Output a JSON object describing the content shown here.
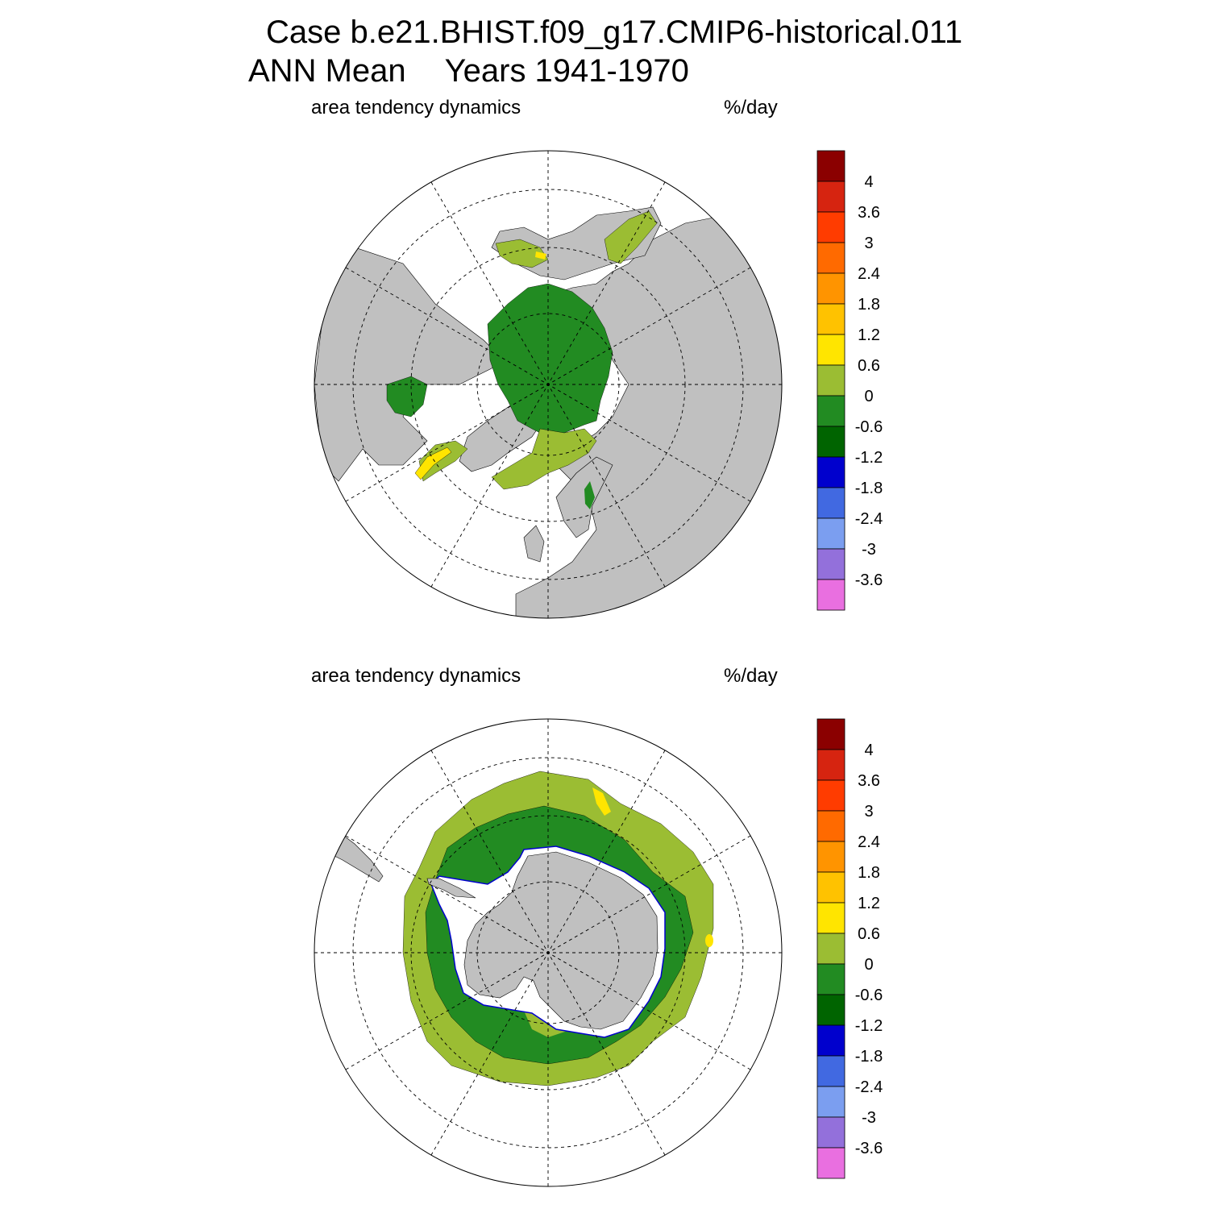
{
  "header": {
    "case_title": "Case b.e21.BHIST.f09_g17.CMIP6-historical.011",
    "period_label": "ANN Mean",
    "years_label": "Years 1941-1970"
  },
  "panels": [
    {
      "variable": "area tendency dynamics",
      "units": "%/day",
      "hemisphere": "north"
    },
    {
      "variable": "area tendency dynamics",
      "units": "%/day",
      "hemisphere": "south"
    }
  ],
  "colorbar": {
    "levels": [
      "4",
      "3.6",
      "3",
      "2.4",
      "1.8",
      "1.2",
      "0.6",
      "0",
      "-0.6",
      "-1.2",
      "-1.8",
      "-2.4",
      "-3",
      "-3.6"
    ],
    "colors": [
      "#8b0000",
      "#d62410",
      "#ff3c00",
      "#ff6a00",
      "#ff9400",
      "#ffc200",
      "#ffe500",
      "#9bbd33",
      "#228b22",
      "#006400",
      "#0000cd",
      "#4169e1",
      "#7b9ef0",
      "#9370db",
      "#e96fe0"
    ]
  },
  "palette": {
    "land": "#c0c0c0",
    "ocean": "#ffffff"
  }
}
